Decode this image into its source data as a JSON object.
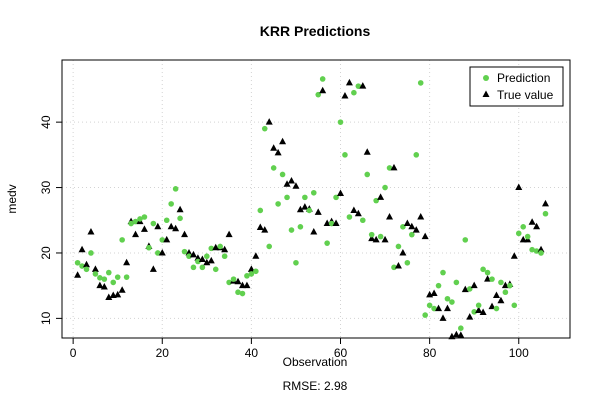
{
  "chart_data": {
    "type": "scatter",
    "title": "KRR Predictions",
    "xlabel": "Observation",
    "ylabel": "medv",
    "footer": "RMSE: 2.98",
    "xlim": [
      -2.5,
      111.5
    ],
    "ylim": [
      7,
      49.5
    ],
    "xticks": [
      0,
      20,
      40,
      60,
      80,
      100
    ],
    "yticks": [
      10,
      20,
      30,
      40
    ],
    "grid": true,
    "legend_position": "top-right",
    "x": [
      1,
      2,
      3,
      4,
      5,
      6,
      7,
      8,
      9,
      10,
      11,
      12,
      13,
      14,
      15,
      16,
      17,
      18,
      19,
      20,
      21,
      22,
      23,
      24,
      25,
      26,
      27,
      28,
      29,
      30,
      31,
      32,
      33,
      34,
      35,
      36,
      37,
      38,
      39,
      40,
      41,
      42,
      43,
      44,
      45,
      46,
      47,
      48,
      49,
      50,
      51,
      52,
      53,
      54,
      55,
      56,
      57,
      58,
      59,
      60,
      61,
      62,
      63,
      64,
      65,
      66,
      67,
      68,
      69,
      70,
      71,
      72,
      73,
      74,
      75,
      76,
      77,
      78,
      79,
      80,
      81,
      82,
      83,
      84,
      85,
      86,
      87,
      88,
      89,
      90,
      91,
      92,
      93,
      94,
      95,
      96,
      97,
      98,
      99,
      100,
      101,
      102,
      103,
      104,
      105,
      106
    ],
    "series": [
      {
        "name": "Prediction",
        "marker": "circle",
        "color": "#61d04f",
        "values": [
          18.5,
          18.0,
          17.5,
          20.0,
          16.8,
          16.2,
          16.0,
          17.0,
          15.5,
          16.3,
          22.0,
          16.3,
          24.5,
          24.8,
          25.2,
          25.5,
          20.8,
          24.5,
          20.0,
          22.0,
          25.0,
          27.5,
          29.8,
          25.3,
          20.2,
          19.5,
          17.8,
          18.7,
          17.8,
          19.5,
          20.7,
          17.5,
          21.0,
          19.5,
          15.5,
          16.0,
          14.0,
          13.8,
          16.5,
          16.8,
          17.2,
          26.5,
          39.0,
          21.0,
          33.0,
          27.5,
          32.0,
          28.5,
          23.5,
          18.5,
          24.0,
          28.5,
          26.5,
          29.2,
          44.2,
          46.6,
          21.5,
          24.5,
          28.5,
          40.0,
          35.0,
          25.5,
          44.5,
          45.5,
          25.0,
          32.0,
          22.8,
          28.0,
          22.5,
          30.0,
          33.0,
          17.8,
          21.0,
          24.0,
          18.5,
          22.8,
          35.0,
          46.0,
          10.5,
          12.0,
          11.5,
          15.0,
          17.0,
          13.0,
          12.5,
          15.5,
          8.5,
          22.0,
          14.5,
          11.0,
          12.0,
          17.5,
          17.0,
          16.0,
          11.5,
          15.5,
          14.0,
          15.0,
          12.0,
          23.0,
          24.0,
          22.5,
          20.5,
          20.3,
          20.0,
          26.0
        ]
      },
      {
        "name": "True value",
        "marker": "triangle",
        "color": "#000000",
        "values": [
          16.6,
          20.5,
          18.2,
          23.2,
          17.5,
          15.0,
          14.8,
          13.2,
          13.5,
          13.6,
          14.3,
          18.5,
          24.8,
          22.8,
          24.8,
          23.6,
          21.0,
          17.5,
          24.0,
          20.0,
          22.0,
          24.0,
          23.7,
          26.6,
          22.8,
          20.0,
          19.7,
          19.2,
          19.0,
          18.5,
          18.8,
          20.8,
          20.8,
          20.5,
          22.8,
          15.7,
          15.6,
          15.0,
          15.0,
          17.5,
          19.5,
          23.9,
          23.5,
          40.0,
          36.0,
          35.3,
          37.0,
          30.5,
          31.0,
          30.2,
          26.6,
          27.0,
          26.7,
          23.2,
          26.2,
          44.8,
          24.5,
          24.8,
          24.5,
          29.1,
          44.0,
          46.0,
          26.5,
          26.0,
          45.5,
          35.4,
          22.2,
          22.0,
          28.5,
          22.0,
          25.5,
          33.0,
          18.0,
          20.0,
          24.5,
          24.0,
          23.5,
          25.5,
          22.5,
          13.6,
          13.8,
          11.5,
          10.0,
          11.5,
          7.2,
          7.5,
          7.4,
          14.4,
          10.2,
          15.0,
          11.2,
          10.9,
          16.0,
          11.8,
          13.5,
          12.7,
          15.0,
          15.2,
          19.5,
          30.0,
          22.0,
          22.0,
          24.7,
          24.0,
          20.5,
          27.5
        ]
      }
    ]
  }
}
